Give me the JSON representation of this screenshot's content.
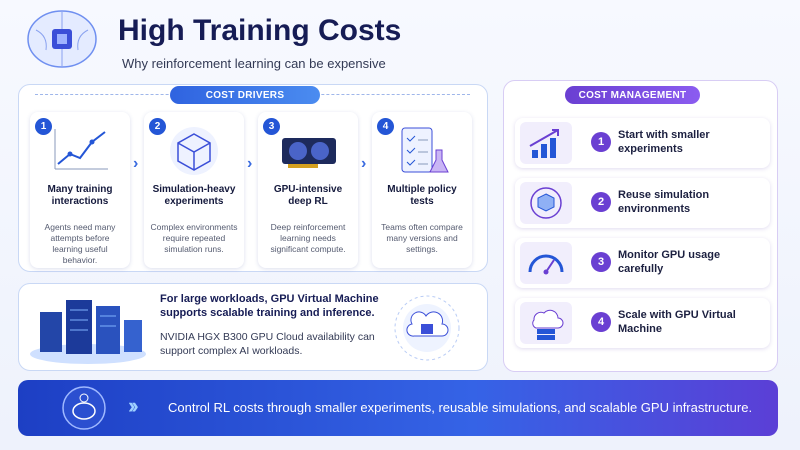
{
  "header": {
    "title": "High Training Costs",
    "subtitle": "Why reinforcement learning can be expensive"
  },
  "cost_drivers": {
    "heading": "COST DRIVERS",
    "items": [
      {
        "number": 1,
        "title": "Many training interactions",
        "text": "Agents need many attempts before learning useful behavior."
      },
      {
        "number": 2,
        "title": "Simulation-heavy experiments",
        "text": "Complex environments require repeated simulation runs."
      },
      {
        "number": 3,
        "title": "GPU-intensive deep RL",
        "text": "Deep reinforcement learning needs significant compute."
      },
      {
        "number": 4,
        "title": "Multiple policy tests",
        "text": "Teams often compare many versions and settings."
      }
    ]
  },
  "callout": {
    "bold": "For large workloads, GPU Virtual Machine supports scalable training and inference.",
    "text": "NVIDIA HGX B300 GPU Cloud availability can support complex AI workloads."
  },
  "cost_management": {
    "heading": "COST MANAGEMENT",
    "items": [
      {
        "number": 1,
        "text": "Start with smaller experiments"
      },
      {
        "number": 2,
        "text": "Reuse simulation environments"
      },
      {
        "number": 3,
        "text": "Monitor GPU usage carefully"
      },
      {
        "number": 4,
        "text": "Scale with GPU Virtual Machine"
      }
    ]
  },
  "footer": {
    "text": "Control RL costs through smaller experiments, reusable simulations, and scalable GPU infrastructure."
  }
}
